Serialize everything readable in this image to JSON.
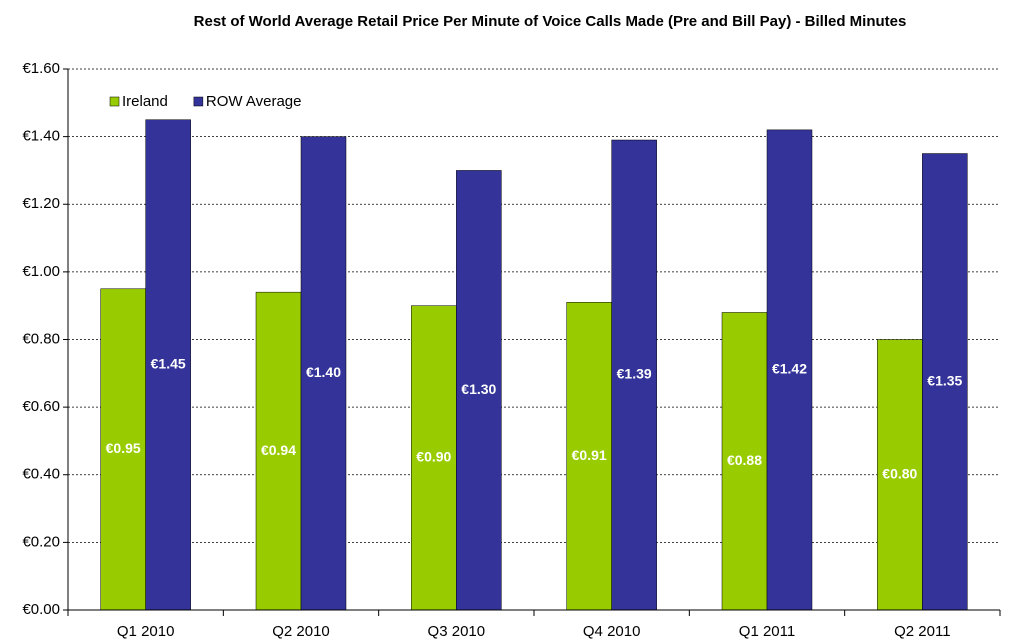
{
  "chart_data": {
    "type": "bar",
    "title": "Rest of World Average Retail Price Per Minute of Voice Calls Made (Pre and Bill Pay) - Billed Minutes",
    "categories": [
      "Q1 2010",
      "Q2 2010",
      "Q3 2010",
      "Q4 2010",
      "Q1 2011",
      "Q2 2011"
    ],
    "series": [
      {
        "name": "Ireland",
        "color": "#99cc00",
        "values": [
          0.95,
          0.94,
          0.9,
          0.91,
          0.88,
          0.8
        ],
        "value_labels": [
          "€0.95",
          "€0.94",
          "€0.90",
          "€0.91",
          "€0.88",
          "€0.80"
        ]
      },
      {
        "name": "ROW Average",
        "color": "#333399",
        "values": [
          1.45,
          1.4,
          1.3,
          1.39,
          1.42,
          1.35
        ],
        "value_labels": [
          "€1.45",
          "€1.40",
          "€1.30",
          "€1.39",
          "€1.42",
          "€1.35"
        ]
      }
    ],
    "ylim": [
      0,
      1.6
    ],
    "yticks": [
      {
        "value": 0,
        "label": "€0.00"
      },
      {
        "value": 0.2,
        "label": "€0.20"
      },
      {
        "value": 0.4,
        "label": "€0.40"
      },
      {
        "value": 0.6,
        "label": "€0.60"
      },
      {
        "value": 0.8,
        "label": "€0.80"
      },
      {
        "value": 1.0,
        "label": "€1.00"
      },
      {
        "value": 1.2,
        "label": "€1.20"
      },
      {
        "value": 1.4,
        "label": "€1.40"
      },
      {
        "value": 1.6,
        "label": "€1.60"
      }
    ],
    "grid": true,
    "legend": "top-left"
  }
}
